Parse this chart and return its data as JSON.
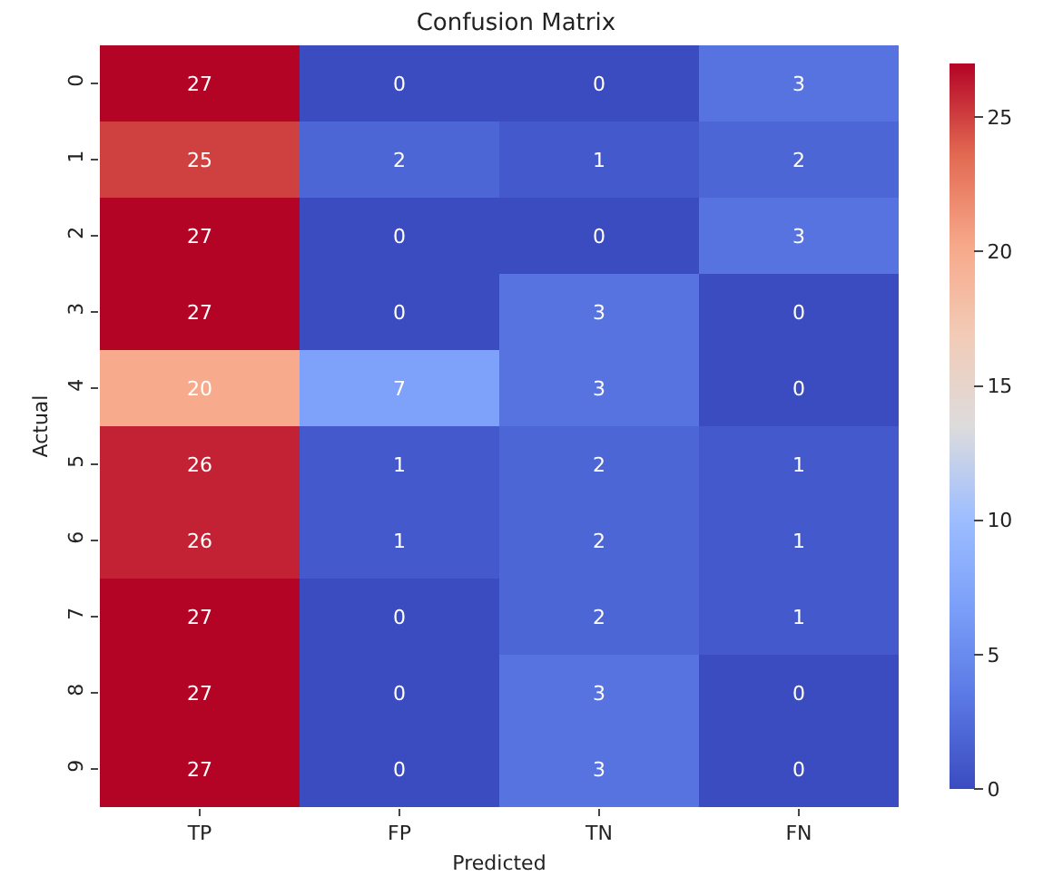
{
  "chart_data": {
    "type": "heatmap",
    "title": "Confusion Matrix",
    "xlabel": "Predicted",
    "ylabel": "Actual",
    "categories": [
      "TP",
      "FP",
      "TN",
      "FN"
    ],
    "y_categories": [
      "0",
      "1",
      "2",
      "3",
      "4",
      "5",
      "6",
      "7",
      "8",
      "9"
    ],
    "cells": [
      [
        27,
        0,
        0,
        3
      ],
      [
        25,
        2,
        1,
        2
      ],
      [
        27,
        0,
        0,
        3
      ],
      [
        27,
        0,
        3,
        0
      ],
      [
        20,
        7,
        3,
        0
      ],
      [
        26,
        1,
        2,
        1
      ],
      [
        26,
        1,
        2,
        1
      ],
      [
        27,
        0,
        2,
        1
      ],
      [
        27,
        0,
        3,
        0
      ],
      [
        27,
        0,
        3,
        0
      ]
    ],
    "clim": [
      0,
      27
    ],
    "cticks": [
      0,
      5,
      10,
      15,
      20,
      25
    ],
    "data_labels": true
  }
}
